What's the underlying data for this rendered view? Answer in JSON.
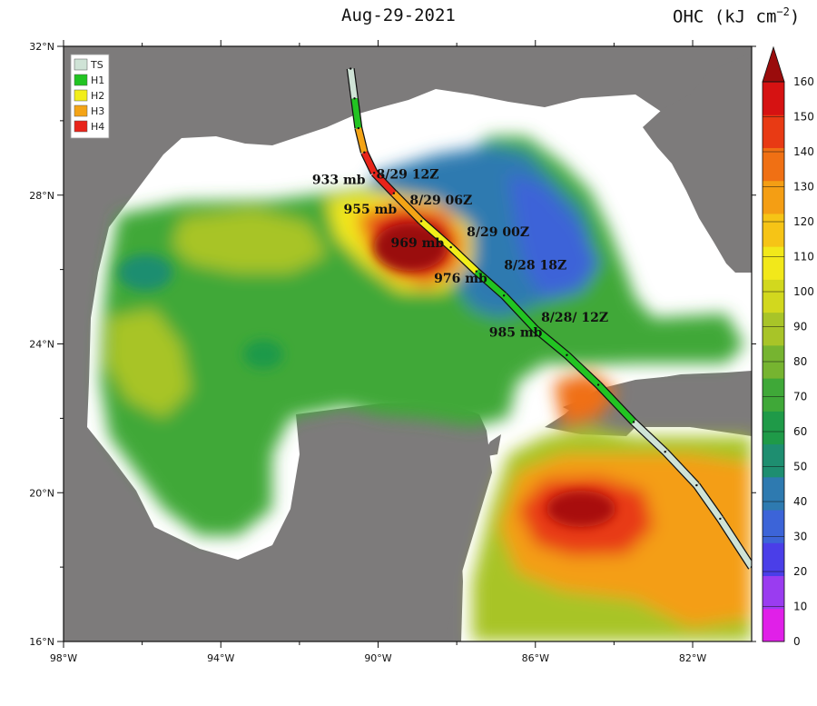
{
  "title": "Aug-29-2021",
  "colorbar": {
    "label": "OHC (kJ cm",
    "label_sup": "−2",
    "label_end": ")",
    "ticks": [
      "0",
      "10",
      "20",
      "30",
      "40",
      "50",
      "60",
      "70",
      "80",
      "90",
      "100",
      "110",
      "120",
      "130",
      "140",
      "150",
      "160"
    ],
    "colors": [
      "#e020e8",
      "#9a3cf0",
      "#4a3ee8",
      "#3c64d8",
      "#2e7ab0",
      "#1e8e70",
      "#1f9a48",
      "#3fa838",
      "#76b430",
      "#a8c428",
      "#d2d81e",
      "#f2e81a",
      "#f6c416",
      "#f49e14",
      "#f07014",
      "#e83a14",
      "#d61212"
    ],
    "top_color": "#9a0c0c"
  },
  "legend": [
    {
      "label": "TS",
      "color": "#cfe3d6"
    },
    {
      "label": "H1",
      "color": "#22c422"
    },
    {
      "label": "H2",
      "color": "#f2ee1a"
    },
    {
      "label": "H3",
      "color": "#f4a416"
    },
    {
      "label": "H4",
      "color": "#e8241a"
    }
  ],
  "axes": {
    "lon_ticks": [
      "98°W",
      "94°W",
      "90°W",
      "86°W",
      "82°W"
    ],
    "lat_ticks": [
      "32°N",
      "28°N",
      "24°N",
      "20°N",
      "16°N"
    ],
    "lon_range": [
      -98,
      -80.5
    ],
    "lat_range": [
      16,
      32
    ]
  },
  "track": [
    {
      "lon": -90.7,
      "lat": 31.4,
      "cat": "TS"
    },
    {
      "lon": -90.6,
      "lat": 30.6,
      "cat": "TS"
    },
    {
      "lon": -90.5,
      "lat": 29.8,
      "cat": "H1"
    },
    {
      "lon": -90.35,
      "lat": 29.15,
      "cat": "H3"
    },
    {
      "lon": -90.1,
      "lat": 28.6,
      "cat": "H4"
    },
    {
      "lon": -89.6,
      "lat": 28.05,
      "cat": "H4"
    },
    {
      "lon": -88.9,
      "lat": 27.3,
      "cat": "H3"
    },
    {
      "lon": -88.15,
      "lat": 26.6,
      "cat": "H2"
    },
    {
      "lon": -87.5,
      "lat": 25.95,
      "cat": "H2"
    },
    {
      "lon": -86.8,
      "lat": 25.3,
      "cat": "H1"
    },
    {
      "lon": -86.0,
      "lat": 24.4,
      "cat": "H1"
    },
    {
      "lon": -85.2,
      "lat": 23.7,
      "cat": "H1"
    },
    {
      "lon": -84.4,
      "lat": 22.9,
      "cat": "H1"
    },
    {
      "lon": -83.5,
      "lat": 21.9,
      "cat": "H1"
    },
    {
      "lon": -82.7,
      "lat": 21.1,
      "cat": "TS"
    },
    {
      "lon": -81.9,
      "lat": 20.2,
      "cat": "TS"
    },
    {
      "lon": -81.3,
      "lat": 19.3,
      "cat": "TS"
    },
    {
      "lon": -80.5,
      "lat": 18.0,
      "cat": "TS"
    }
  ],
  "annotations": [
    {
      "text": "933 mb",
      "lon": -91.0,
      "lat": 28.3
    },
    {
      "text": "8/29 12Z",
      "lon": -89.25,
      "lat": 28.45
    },
    {
      "text": "955 mb",
      "lon": -90.2,
      "lat": 27.5
    },
    {
      "text": "8/29 06Z",
      "lon": -88.4,
      "lat": 27.75
    },
    {
      "text": "969 mb",
      "lon": -89.0,
      "lat": 26.6
    },
    {
      "text": "8/29 00Z",
      "lon": -86.95,
      "lat": 26.9
    },
    {
      "text": "976 mb",
      "lon": -87.9,
      "lat": 25.65
    },
    {
      "text": "8/28 18Z",
      "lon": -86.0,
      "lat": 26.0
    },
    {
      "text": "985 mb",
      "lon": -86.5,
      "lat": 24.2
    },
    {
      "text": "8/28/ 12Z",
      "lon": -85.0,
      "lat": 24.6
    }
  ]
}
